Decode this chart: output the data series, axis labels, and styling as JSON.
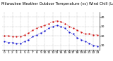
{
  "title": "Milwaukee Weather Outdoor Temperature (vs) Wind Chill (Last 24 Hours)",
  "temp_x": [
    0,
    1,
    2,
    3,
    4,
    5,
    6,
    7,
    8,
    9,
    10,
    11,
    12,
    13,
    14,
    15,
    16,
    17,
    18,
    19,
    20,
    21,
    22,
    23
  ],
  "temp_y": [
    20,
    20,
    19,
    19,
    19,
    21,
    23,
    26,
    28,
    30,
    31,
    33,
    35,
    36,
    35,
    33,
    30,
    28,
    26,
    24,
    22,
    22,
    21,
    21
  ],
  "chill_y": [
    14,
    13,
    13,
    12,
    12,
    14,
    16,
    19,
    21,
    23,
    25,
    28,
    30,
    31,
    30,
    28,
    24,
    22,
    18,
    16,
    14,
    12,
    10,
    9
  ],
  "temp_color": "#cc0000",
  "chill_color": "#0000cc",
  "ylim": [
    5,
    45
  ],
  "ytick_values": [
    10,
    20,
    30,
    40
  ],
  "ytick_labels": [
    "10",
    "20",
    "30",
    "40"
  ],
  "background_color": "#ffffff",
  "grid_color": "#bbbbbb",
  "title_fontsize": 3.8,
  "tick_fontsize": 3.2,
  "marker_size": 1.2,
  "line_width": 0.5
}
